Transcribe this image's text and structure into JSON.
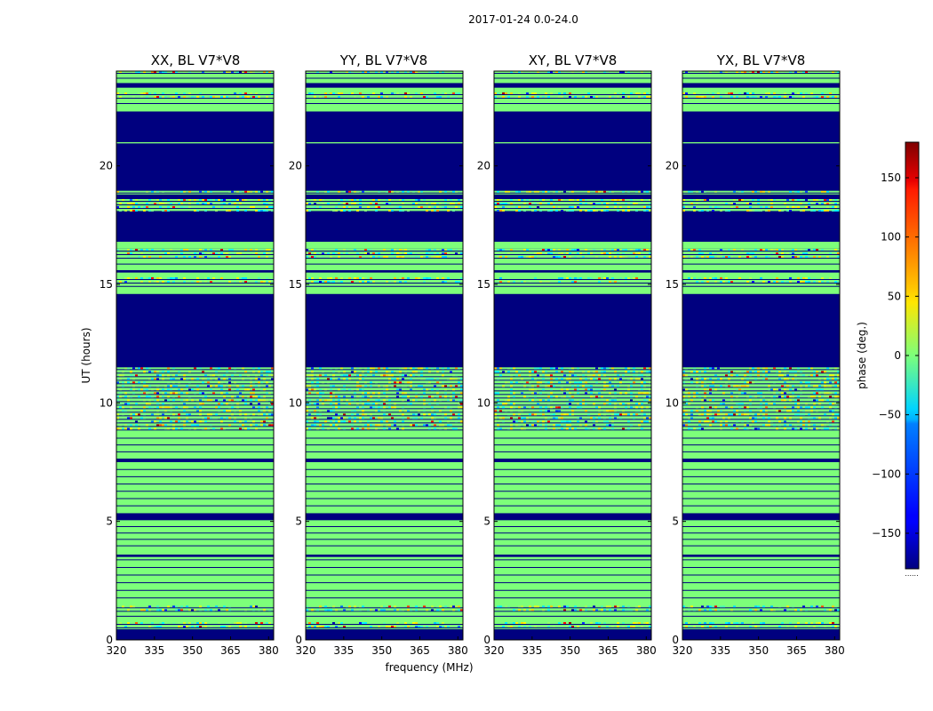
{
  "figure": {
    "suptitle": "2017-01-24 0.0-24.0",
    "colorbar_footer": "......"
  },
  "chart_data": {
    "type": "heatmap",
    "xlabel": "frequency (MHz)",
    "ylabel": "UT (hours)",
    "xlim": [
      320,
      382
    ],
    "ylim": [
      0,
      24
    ],
    "xticks": [
      320,
      335,
      350,
      365,
      380
    ],
    "yticks": [
      0,
      5,
      10,
      15,
      20
    ],
    "colorbar": {
      "label": "phase (deg.)",
      "range": [
        -180,
        180
      ],
      "ticks": [
        150,
        100,
        50,
        0,
        -50,
        -100,
        -150
      ],
      "tick_labels": [
        "150",
        "100",
        "50",
        "0",
        "−50",
        "−100",
        "−150"
      ],
      "colormap": "jet"
    },
    "panel_titles": [
      "XX, BL V7*V8",
      "YY, BL V7*V8",
      "XY, BL V7*V8",
      "YX, BL V7*V8"
    ],
    "panels": [
      {
        "title": "XX, BL V7*V8",
        "bands": [
          {
            "from": 0.0,
            "to": 0.45,
            "kind": "flagged"
          },
          {
            "from": 0.45,
            "to": 0.75,
            "kind": "noisy"
          },
          {
            "from": 0.75,
            "to": 1.25,
            "kind": "zero"
          },
          {
            "from": 1.25,
            "to": 1.45,
            "kind": "noisy"
          },
          {
            "from": 1.45,
            "to": 3.7,
            "kind": "zero"
          },
          {
            "from": 3.5,
            "to": 3.6,
            "kind": "flagged"
          },
          {
            "from": 3.7,
            "to": 5.05,
            "kind": "zero"
          },
          {
            "from": 5.05,
            "to": 5.35,
            "kind": "flagged"
          },
          {
            "from": 5.35,
            "to": 7.5,
            "kind": "zero"
          },
          {
            "from": 7.5,
            "to": 7.65,
            "kind": "flagged"
          },
          {
            "from": 7.65,
            "to": 8.8,
            "kind": "zero"
          },
          {
            "from": 8.8,
            "to": 11.5,
            "kind": "noisy"
          },
          {
            "from": 11.5,
            "to": 14.6,
            "kind": "flagged"
          },
          {
            "from": 14.6,
            "to": 16.8,
            "kind": "zero"
          },
          {
            "from": 15.0,
            "to": 15.3,
            "kind": "noisy"
          },
          {
            "from": 15.5,
            "to": 15.6,
            "kind": "flagged"
          },
          {
            "from": 16.1,
            "to": 16.5,
            "kind": "noisy"
          },
          {
            "from": 16.8,
            "to": 18.1,
            "kind": "flagged"
          },
          {
            "from": 18.1,
            "to": 18.6,
            "kind": "noisy"
          },
          {
            "from": 18.6,
            "to": 18.8,
            "kind": "flagged"
          },
          {
            "from": 18.8,
            "to": 18.95,
            "kind": "noisy"
          },
          {
            "from": 18.95,
            "to": 22.3,
            "kind": "flagged"
          },
          {
            "from": 20.95,
            "to": 21.0,
            "kind": "zero"
          },
          {
            "from": 22.3,
            "to": 23.3,
            "kind": "zero"
          },
          {
            "from": 22.9,
            "to": 23.1,
            "kind": "noisy"
          },
          {
            "from": 23.3,
            "to": 23.5,
            "kind": "flagged"
          },
          {
            "from": 23.5,
            "to": 23.9,
            "kind": "zero"
          },
          {
            "from": 23.85,
            "to": 24.0,
            "kind": "noisy"
          }
        ]
      },
      {
        "title": "YY, BL V7*V8",
        "bands": [
          {
            "from": 0.0,
            "to": 0.45,
            "kind": "flagged"
          },
          {
            "from": 0.45,
            "to": 0.75,
            "kind": "noisy"
          },
          {
            "from": 0.75,
            "to": 1.25,
            "kind": "zero"
          },
          {
            "from": 1.25,
            "to": 1.45,
            "kind": "noisy"
          },
          {
            "from": 1.45,
            "to": 3.7,
            "kind": "zero"
          },
          {
            "from": 3.5,
            "to": 3.6,
            "kind": "flagged"
          },
          {
            "from": 3.7,
            "to": 5.05,
            "kind": "zero"
          },
          {
            "from": 5.05,
            "to": 5.35,
            "kind": "flagged"
          },
          {
            "from": 5.35,
            "to": 7.5,
            "kind": "zero"
          },
          {
            "from": 7.5,
            "to": 7.65,
            "kind": "flagged"
          },
          {
            "from": 7.65,
            "to": 8.8,
            "kind": "zero"
          },
          {
            "from": 8.8,
            "to": 11.5,
            "kind": "noisy"
          },
          {
            "from": 11.5,
            "to": 14.6,
            "kind": "flagged"
          },
          {
            "from": 14.6,
            "to": 16.8,
            "kind": "zero"
          },
          {
            "from": 15.0,
            "to": 15.3,
            "kind": "noisy"
          },
          {
            "from": 15.5,
            "to": 15.6,
            "kind": "flagged"
          },
          {
            "from": 16.1,
            "to": 16.5,
            "kind": "noisy"
          },
          {
            "from": 16.8,
            "to": 18.1,
            "kind": "flagged"
          },
          {
            "from": 18.1,
            "to": 18.6,
            "kind": "noisy"
          },
          {
            "from": 18.6,
            "to": 18.8,
            "kind": "flagged"
          },
          {
            "from": 18.8,
            "to": 18.95,
            "kind": "noisy"
          },
          {
            "from": 18.95,
            "to": 22.3,
            "kind": "flagged"
          },
          {
            "from": 20.95,
            "to": 21.0,
            "kind": "zero"
          },
          {
            "from": 22.3,
            "to": 23.3,
            "kind": "zero"
          },
          {
            "from": 22.9,
            "to": 23.1,
            "kind": "noisy"
          },
          {
            "from": 23.3,
            "to": 23.5,
            "kind": "flagged"
          },
          {
            "from": 23.5,
            "to": 23.9,
            "kind": "zero"
          },
          {
            "from": 23.85,
            "to": 24.0,
            "kind": "noisy"
          }
        ]
      },
      {
        "title": "XY, BL V7*V8",
        "bands": [
          {
            "from": 0.0,
            "to": 0.45,
            "kind": "flagged"
          },
          {
            "from": 0.45,
            "to": 0.75,
            "kind": "noisy"
          },
          {
            "from": 0.75,
            "to": 1.25,
            "kind": "zero"
          },
          {
            "from": 1.25,
            "to": 1.45,
            "kind": "noisy"
          },
          {
            "from": 1.45,
            "to": 3.7,
            "kind": "zero"
          },
          {
            "from": 3.5,
            "to": 3.6,
            "kind": "flagged"
          },
          {
            "from": 3.7,
            "to": 5.05,
            "kind": "zero"
          },
          {
            "from": 5.05,
            "to": 5.35,
            "kind": "flagged"
          },
          {
            "from": 5.35,
            "to": 7.5,
            "kind": "zero"
          },
          {
            "from": 7.5,
            "to": 7.65,
            "kind": "flagged"
          },
          {
            "from": 7.65,
            "to": 8.8,
            "kind": "zero"
          },
          {
            "from": 8.8,
            "to": 11.5,
            "kind": "noisy"
          },
          {
            "from": 11.5,
            "to": 14.6,
            "kind": "flagged"
          },
          {
            "from": 14.6,
            "to": 16.8,
            "kind": "zero"
          },
          {
            "from": 15.0,
            "to": 15.3,
            "kind": "noisy"
          },
          {
            "from": 15.5,
            "to": 15.6,
            "kind": "flagged"
          },
          {
            "from": 16.1,
            "to": 16.5,
            "kind": "noisy"
          },
          {
            "from": 16.8,
            "to": 18.1,
            "kind": "flagged"
          },
          {
            "from": 18.1,
            "to": 18.6,
            "kind": "noisy"
          },
          {
            "from": 18.6,
            "to": 18.8,
            "kind": "flagged"
          },
          {
            "from": 18.8,
            "to": 18.95,
            "kind": "noisy"
          },
          {
            "from": 18.95,
            "to": 22.3,
            "kind": "flagged"
          },
          {
            "from": 20.95,
            "to": 21.0,
            "kind": "zero"
          },
          {
            "from": 22.3,
            "to": 23.3,
            "kind": "zero"
          },
          {
            "from": 22.9,
            "to": 23.1,
            "kind": "noisy"
          },
          {
            "from": 23.3,
            "to": 23.5,
            "kind": "flagged"
          },
          {
            "from": 23.5,
            "to": 23.9,
            "kind": "zero"
          },
          {
            "from": 23.85,
            "to": 24.0,
            "kind": "noisy"
          }
        ]
      },
      {
        "title": "YX, BL V7*V8",
        "bands": [
          {
            "from": 0.0,
            "to": 0.45,
            "kind": "flagged"
          },
          {
            "from": 0.45,
            "to": 0.75,
            "kind": "noisy"
          },
          {
            "from": 0.75,
            "to": 1.25,
            "kind": "zero"
          },
          {
            "from": 1.25,
            "to": 1.45,
            "kind": "noisy"
          },
          {
            "from": 1.45,
            "to": 3.7,
            "kind": "zero"
          },
          {
            "from": 3.5,
            "to": 3.6,
            "kind": "flagged"
          },
          {
            "from": 3.7,
            "to": 5.05,
            "kind": "zero"
          },
          {
            "from": 5.05,
            "to": 5.35,
            "kind": "flagged"
          },
          {
            "from": 5.35,
            "to": 7.5,
            "kind": "zero"
          },
          {
            "from": 7.5,
            "to": 7.65,
            "kind": "flagged"
          },
          {
            "from": 7.65,
            "to": 8.8,
            "kind": "zero"
          },
          {
            "from": 8.8,
            "to": 11.5,
            "kind": "noisy"
          },
          {
            "from": 11.5,
            "to": 14.6,
            "kind": "flagged"
          },
          {
            "from": 14.6,
            "to": 16.8,
            "kind": "zero"
          },
          {
            "from": 15.0,
            "to": 15.3,
            "kind": "noisy"
          },
          {
            "from": 15.5,
            "to": 15.6,
            "kind": "flagged"
          },
          {
            "from": 16.1,
            "to": 16.5,
            "kind": "noisy"
          },
          {
            "from": 16.8,
            "to": 18.1,
            "kind": "flagged"
          },
          {
            "from": 18.1,
            "to": 18.6,
            "kind": "noisy"
          },
          {
            "from": 18.6,
            "to": 18.8,
            "kind": "flagged"
          },
          {
            "from": 18.8,
            "to": 18.95,
            "kind": "noisy"
          },
          {
            "from": 18.95,
            "to": 22.3,
            "kind": "flagged"
          },
          {
            "from": 20.95,
            "to": 21.0,
            "kind": "zero"
          },
          {
            "from": 22.3,
            "to": 23.3,
            "kind": "zero"
          },
          {
            "from": 22.9,
            "to": 23.1,
            "kind": "noisy"
          },
          {
            "from": 23.3,
            "to": 23.5,
            "kind": "flagged"
          },
          {
            "from": 23.5,
            "to": 23.9,
            "kind": "zero"
          },
          {
            "from": 23.85,
            "to": 24.0,
            "kind": "noisy"
          }
        ]
      }
    ]
  },
  "colors": {
    "flagged": "#00007f",
    "zero": "#7dff7a",
    "line": "#000000"
  }
}
